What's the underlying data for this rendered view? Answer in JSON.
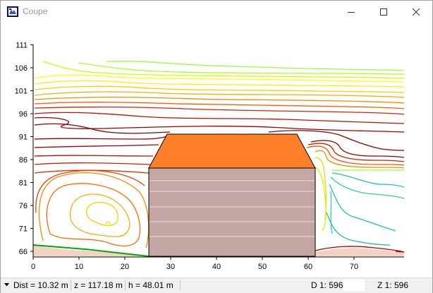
{
  "window": {
    "title": "Coupe",
    "app_icon": "coupe-app-icon",
    "controls": [
      "minimize-icon",
      "maximize-icon",
      "close-icon"
    ]
  },
  "chart_data": {
    "type": "contour-section",
    "title": "",
    "xlabel": "",
    "ylabel": "",
    "x_ticks": [
      "0",
      "10",
      "20",
      "30",
      "40",
      "50",
      "60",
      "70"
    ],
    "y_ticks": [
      "66",
      "71",
      "76",
      "81",
      "86",
      "91",
      "96",
      "101",
      "106",
      "111"
    ],
    "xlim": [
      0,
      81
    ],
    "ylim": [
      65,
      112
    ],
    "building": {
      "base_x": [
        25.5,
        61.5
      ],
      "wall_top_z": 86,
      "roof_ridge_x": [
        29,
        57.5
      ],
      "roof_ridge_z": 92.5,
      "floor_lines_z": [
        68.8,
        72.2,
        75.6,
        79.0,
        82.4
      ],
      "wall_color": "#c4a6a5",
      "roof_color": "#ff7f2a"
    },
    "ground": {
      "color": "#f2d2c2"
    },
    "colors": {
      "low": "#8b0000",
      "mid_low": "#cc1a00",
      "mid": "#ff6a00",
      "mid_high": "#ffcc00",
      "high": "#99ff33",
      "cool": "#20c0b0",
      "green_line": "#00aa00"
    }
  },
  "status": {
    "dropdown_icon": "dropdown-arrow-icon",
    "dist": "Dist = 10.32 m",
    "z": "z = 117.18 m",
    "h": "h = 48.01 m",
    "d_scale": "D  1: 596",
    "z_scale": "Z  1: 596"
  }
}
